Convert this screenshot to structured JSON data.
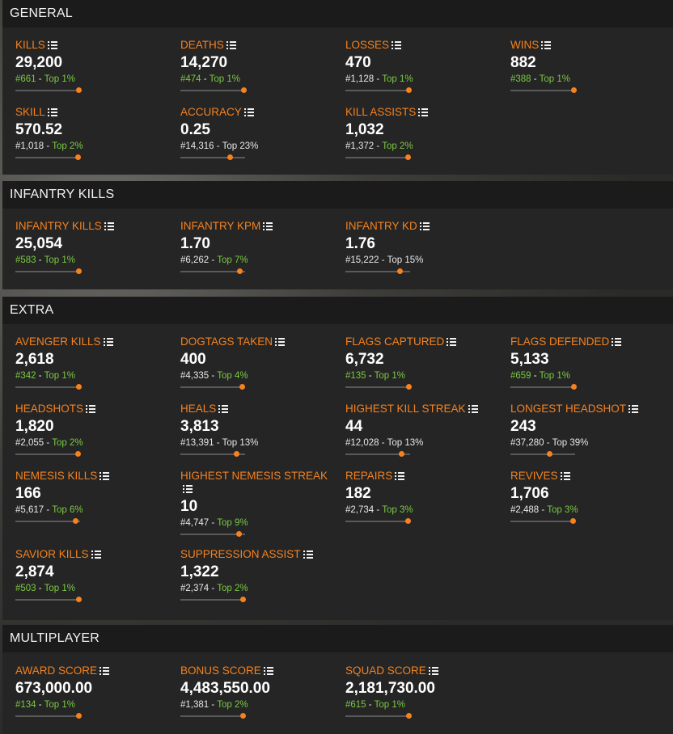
{
  "colors": {
    "accent": "#f5821f",
    "good": "#7ac943",
    "header_bg": "#1b1b1b",
    "body_bg": "#252525"
  },
  "sections": {
    "general": {
      "title": "GENERAL",
      "stats": [
        {
          "label": "KILLS",
          "value": "29,200",
          "rank": "#661",
          "top": "Top 1%",
          "rank_green": true,
          "top_green": true,
          "fill": 0.99
        },
        {
          "label": "DEATHS",
          "value": "14,270",
          "rank": "#474",
          "top": "Top 1%",
          "rank_green": true,
          "top_green": true,
          "fill": 0.99
        },
        {
          "label": "LOSSES",
          "value": "470",
          "rank": "#1,128",
          "top": "Top 1%",
          "rank_green": false,
          "top_green": true,
          "fill": 0.99
        },
        {
          "label": "WINS",
          "value": "882",
          "rank": "#388",
          "top": "Top 1%",
          "rank_green": true,
          "top_green": true,
          "fill": 0.99
        },
        {
          "label": "SKILL",
          "value": "570.52",
          "rank": "#1,018",
          "top": "Top 2%",
          "rank_green": false,
          "top_green": true,
          "fill": 0.98
        },
        {
          "label": "ACCURACY",
          "value": "0.25",
          "rank": "#14,316",
          "top": "Top 23%",
          "rank_green": false,
          "top_green": false,
          "fill": 0.77
        },
        {
          "label": "KILL ASSISTS",
          "value": "1,032",
          "rank": "#1,372",
          "top": "Top 2%",
          "rank_green": false,
          "top_green": true,
          "fill": 0.98
        }
      ]
    },
    "infantry": {
      "title": "INFANTRY KILLS",
      "stats": [
        {
          "label": "INFANTRY KILLS",
          "value": "25,054",
          "rank": "#583",
          "top": "Top 1%",
          "rank_green": true,
          "top_green": true,
          "fill": 0.99
        },
        {
          "label": "INFANTRY KPM",
          "value": "1.70",
          "rank": "#6,262",
          "top": "Top 7%",
          "rank_green": false,
          "top_green": true,
          "fill": 0.93
        },
        {
          "label": "INFANTRY KD",
          "value": "1.76",
          "rank": "#15,222",
          "top": "Top 15%",
          "rank_green": false,
          "top_green": false,
          "fill": 0.85
        }
      ]
    },
    "extra": {
      "title": "EXTRA",
      "stats": [
        {
          "label": "AVENGER KILLS",
          "value": "2,618",
          "rank": "#342",
          "top": "Top 1%",
          "rank_green": true,
          "top_green": true,
          "fill": 0.99
        },
        {
          "label": "DOGTAGS TAKEN",
          "value": "400",
          "rank": "#4,335",
          "top": "Top 4%",
          "rank_green": false,
          "top_green": true,
          "fill": 0.96
        },
        {
          "label": "FLAGS CAPTURED",
          "value": "6,732",
          "rank": "#135",
          "top": "Top 1%",
          "rank_green": true,
          "top_green": true,
          "fill": 0.99
        },
        {
          "label": "FLAGS DEFENDED",
          "value": "5,133",
          "rank": "#659",
          "top": "Top 1%",
          "rank_green": true,
          "top_green": true,
          "fill": 0.99
        },
        {
          "label": "HEADSHOTS",
          "value": "1,820",
          "rank": "#2,055",
          "top": "Top 2%",
          "rank_green": false,
          "top_green": true,
          "fill": 0.98
        },
        {
          "label": "HEALS",
          "value": "3,813",
          "rank": "#13,391",
          "top": "Top 13%",
          "rank_green": false,
          "top_green": false,
          "fill": 0.87
        },
        {
          "label": "HIGHEST KILL STREAK",
          "value": "44",
          "rank": "#12,028",
          "top": "Top 13%",
          "rank_green": false,
          "top_green": false,
          "fill": 0.87
        },
        {
          "label": "LONGEST HEADSHOT",
          "value": "243",
          "rank": "#37,280",
          "top": "Top 39%",
          "rank_green": false,
          "top_green": false,
          "fill": 0.61
        },
        {
          "label": "NEMESIS KILLS",
          "value": "166",
          "rank": "#5,617",
          "top": "Top 6%",
          "rank_green": false,
          "top_green": true,
          "fill": 0.94
        },
        {
          "label": "HIGHEST NEMESIS STREAK",
          "value": "10",
          "rank": "#4,747",
          "top": "Top 9%",
          "rank_green": false,
          "top_green": true,
          "fill": 0.91
        },
        {
          "label": "REPAIRS",
          "value": "182",
          "rank": "#2,734",
          "top": "Top 3%",
          "rank_green": false,
          "top_green": true,
          "fill": 0.97
        },
        {
          "label": "REVIVES",
          "value": "1,706",
          "rank": "#2,488",
          "top": "Top 3%",
          "rank_green": false,
          "top_green": true,
          "fill": 0.97
        },
        {
          "label": "SAVIOR KILLS",
          "value": "2,874",
          "rank": "#503",
          "top": "Top 1%",
          "rank_green": true,
          "top_green": true,
          "fill": 0.99
        },
        {
          "label": "SUPPRESSION ASSIST",
          "value": "1,322",
          "rank": "#2,374",
          "top": "Top 2%",
          "rank_green": false,
          "top_green": true,
          "fill": 0.98
        }
      ]
    },
    "multiplayer": {
      "title": "MULTIPLAYER",
      "stats": [
        {
          "label": "AWARD SCORE",
          "value": "673,000.00",
          "rank": "#134",
          "top": "Top 1%",
          "rank_green": true,
          "top_green": true,
          "fill": 0.99
        },
        {
          "label": "BONUS SCORE",
          "value": "4,483,550.00",
          "rank": "#1,381",
          "top": "Top 2%",
          "rank_green": false,
          "top_green": true,
          "fill": 0.98
        },
        {
          "label": "SQUAD SCORE",
          "value": "2,181,730.00",
          "rank": "#615",
          "top": "Top 1%",
          "rank_green": true,
          "top_green": true,
          "fill": 0.99
        }
      ]
    }
  }
}
